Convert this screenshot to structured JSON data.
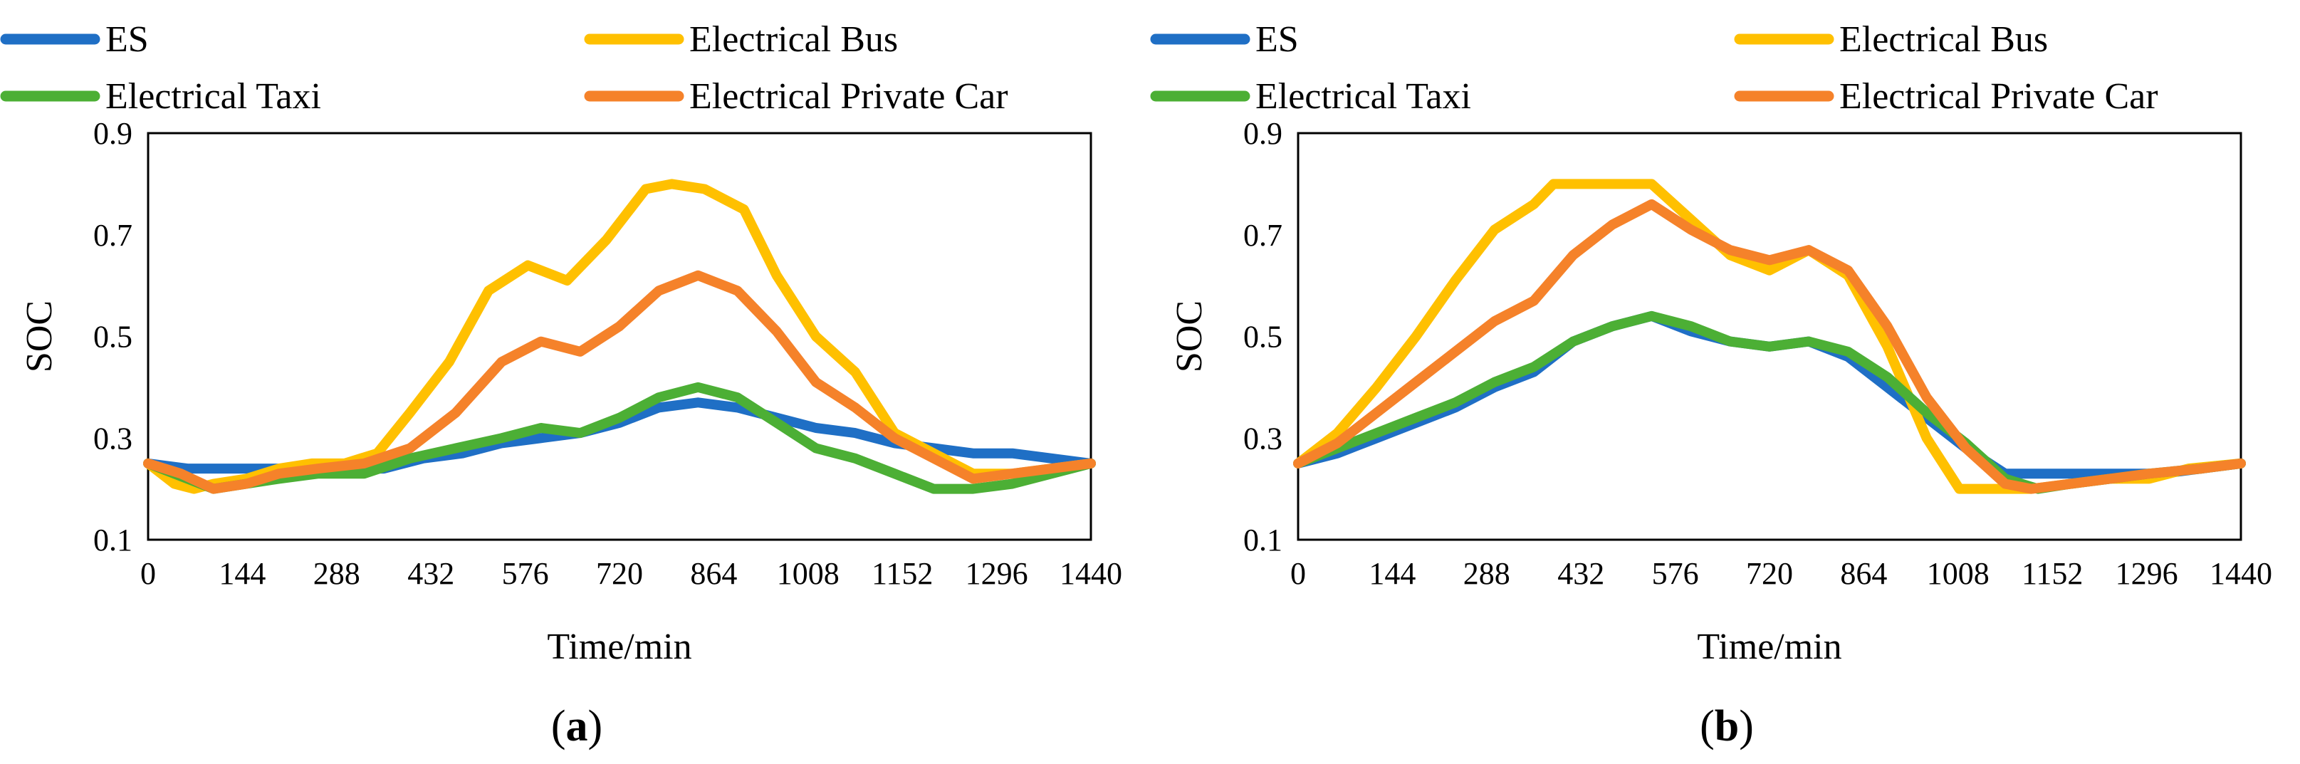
{
  "colors": {
    "es": "#1f6fc5",
    "bus": "#ffc000",
    "taxi": "#4caf35",
    "private": "#f5822a"
  },
  "chart_data": [
    {
      "type": "line",
      "panel": "(a)",
      "panel_letter": "a",
      "xlabel": "Time/min",
      "ylabel": "SOC",
      "xlim": [
        0,
        1440
      ],
      "ylim": [
        0.1,
        0.9
      ],
      "xticks": [
        "0",
        "144",
        "288",
        "432",
        "576",
        "720",
        "864",
        "1008",
        "1152",
        "1296",
        "1440"
      ],
      "yticks": [
        "0.1",
        "0.3",
        "0.5",
        "0.7",
        "0.9"
      ],
      "legend": [
        "ES",
        "Electrical Bus",
        "Electrical Taxi",
        "Electrical Private Car"
      ],
      "series": [
        {
          "name": "ES",
          "color_key": "es",
          "x": [
            0,
            60,
            120,
            180,
            240,
            300,
            360,
            420,
            480,
            540,
            600,
            660,
            720,
            780,
            840,
            900,
            960,
            1020,
            1080,
            1140,
            1200,
            1260,
            1320,
            1380,
            1440
          ],
          "y": [
            0.25,
            0.24,
            0.24,
            0.24,
            0.24,
            0.24,
            0.24,
            0.26,
            0.27,
            0.29,
            0.3,
            0.31,
            0.33,
            0.36,
            0.37,
            0.36,
            0.34,
            0.32,
            0.31,
            0.29,
            0.28,
            0.27,
            0.27,
            0.26,
            0.25
          ]
        },
        {
          "name": "Electrical Bus",
          "color_key": "bus",
          "x": [
            0,
            40,
            70,
            100,
            150,
            200,
            250,
            300,
            350,
            400,
            460,
            520,
            580,
            640,
            700,
            760,
            800,
            850,
            910,
            960,
            1020,
            1080,
            1140,
            1200,
            1260,
            1320,
            1380,
            1440
          ],
          "y": [
            0.25,
            0.21,
            0.2,
            0.21,
            0.22,
            0.24,
            0.25,
            0.25,
            0.27,
            0.35,
            0.45,
            0.59,
            0.64,
            0.61,
            0.69,
            0.79,
            0.8,
            0.79,
            0.75,
            0.62,
            0.5,
            0.43,
            0.31,
            0.27,
            0.23,
            0.23,
            0.24,
            0.25
          ]
        },
        {
          "name": "Electrical Taxi",
          "color_key": "taxi",
          "x": [
            0,
            60,
            100,
            150,
            200,
            260,
            330,
            400,
            470,
            540,
            600,
            660,
            720,
            780,
            840,
            900,
            960,
            1020,
            1080,
            1140,
            1200,
            1260,
            1320,
            1380,
            1440
          ],
          "y": [
            0.25,
            0.22,
            0.2,
            0.21,
            0.22,
            0.23,
            0.23,
            0.26,
            0.28,
            0.3,
            0.32,
            0.31,
            0.34,
            0.38,
            0.4,
            0.38,
            0.33,
            0.28,
            0.26,
            0.23,
            0.2,
            0.2,
            0.21,
            0.23,
            0.25
          ]
        },
        {
          "name": "Electrical Private Car",
          "color_key": "private",
          "x": [
            0,
            50,
            100,
            150,
            200,
            260,
            330,
            400,
            470,
            540,
            600,
            660,
            720,
            780,
            840,
            900,
            960,
            1020,
            1080,
            1140,
            1200,
            1260,
            1320,
            1380,
            1440
          ],
          "y": [
            0.25,
            0.23,
            0.2,
            0.21,
            0.23,
            0.24,
            0.25,
            0.28,
            0.35,
            0.45,
            0.49,
            0.47,
            0.52,
            0.59,
            0.62,
            0.59,
            0.51,
            0.41,
            0.36,
            0.3,
            0.26,
            0.22,
            0.23,
            0.24,
            0.25
          ]
        }
      ]
    },
    {
      "type": "line",
      "panel": "(b)",
      "panel_letter": "b",
      "xlabel": "Time/min",
      "ylabel": "SOC",
      "xlim": [
        0,
        1440
      ],
      "ylim": [
        0.1,
        0.9
      ],
      "xticks": [
        "0",
        "144",
        "288",
        "432",
        "576",
        "720",
        "864",
        "1008",
        "1152",
        "1296",
        "1440"
      ],
      "yticks": [
        "0.1",
        "0.3",
        "0.5",
        "0.7",
        "0.9"
      ],
      "legend": [
        "ES",
        "Electrical Bus",
        "Electrical Taxi",
        "Electrical Private Car"
      ],
      "series": [
        {
          "name": "ES",
          "color_key": "es",
          "x": [
            0,
            60,
            120,
            180,
            240,
            300,
            360,
            420,
            480,
            540,
            600,
            660,
            720,
            780,
            840,
            900,
            960,
            1020,
            1080,
            1140,
            1200,
            1260,
            1320,
            1380,
            1440
          ],
          "y": [
            0.25,
            0.27,
            0.3,
            0.33,
            0.36,
            0.4,
            0.43,
            0.49,
            0.52,
            0.54,
            0.51,
            0.49,
            0.48,
            0.49,
            0.46,
            0.4,
            0.34,
            0.28,
            0.23,
            0.23,
            0.23,
            0.23,
            0.23,
            0.24,
            0.25
          ]
        },
        {
          "name": "Electrical Bus",
          "color_key": "bus",
          "x": [
            0,
            60,
            120,
            180,
            240,
            300,
            360,
            390,
            540,
            600,
            660,
            720,
            780,
            840,
            900,
            960,
            1010,
            1120,
            1180,
            1240,
            1300,
            1360,
            1440
          ],
          "y": [
            0.25,
            0.31,
            0.4,
            0.5,
            0.61,
            0.71,
            0.76,
            0.8,
            0.8,
            0.73,
            0.66,
            0.63,
            0.67,
            0.62,
            0.48,
            0.3,
            0.2,
            0.2,
            0.21,
            0.22,
            0.22,
            0.24,
            0.25
          ]
        },
        {
          "name": "Electrical Taxi",
          "color_key": "taxi",
          "x": [
            0,
            60,
            120,
            180,
            240,
            300,
            360,
            420,
            480,
            540,
            600,
            660,
            720,
            780,
            840,
            900,
            960,
            1020,
            1080,
            1130,
            1180,
            1240,
            1300,
            1380,
            1440
          ],
          "y": [
            0.25,
            0.28,
            0.31,
            0.34,
            0.37,
            0.41,
            0.44,
            0.49,
            0.52,
            0.54,
            0.52,
            0.49,
            0.48,
            0.49,
            0.47,
            0.42,
            0.35,
            0.29,
            0.22,
            0.2,
            0.21,
            0.22,
            0.23,
            0.24,
            0.25
          ]
        },
        {
          "name": "Electrical Private Car",
          "color_key": "private",
          "x": [
            0,
            60,
            120,
            180,
            240,
            300,
            360,
            420,
            480,
            540,
            600,
            660,
            720,
            780,
            840,
            900,
            960,
            1020,
            1080,
            1120,
            1180,
            1240,
            1300,
            1380,
            1440
          ],
          "y": [
            0.25,
            0.29,
            0.35,
            0.41,
            0.47,
            0.53,
            0.57,
            0.66,
            0.72,
            0.76,
            0.71,
            0.67,
            0.65,
            0.67,
            0.63,
            0.52,
            0.38,
            0.28,
            0.21,
            0.2,
            0.21,
            0.22,
            0.23,
            0.24,
            0.25
          ]
        }
      ]
    }
  ]
}
